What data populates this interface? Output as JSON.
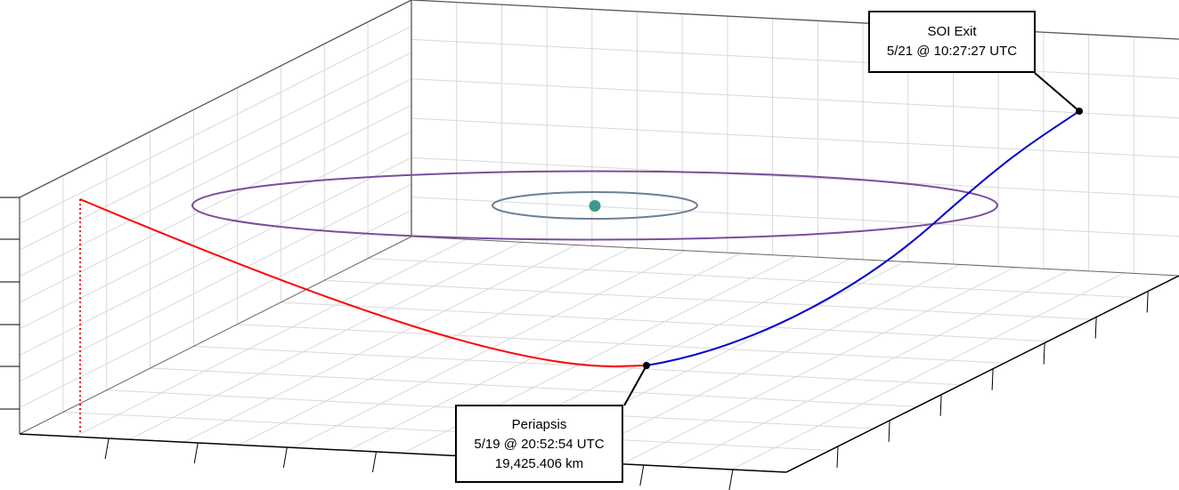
{
  "colors": {
    "grid": "#d9d9d9",
    "box_edge": "#000000",
    "approach_trajectory": "#ff0000",
    "departure_trajectory": "#0000cc",
    "outer_orbit": "#7b4d9a",
    "inner_orbit": "#6d7e96",
    "central_body": "#3a9a8a"
  },
  "markers": {
    "central_body": "central-body",
    "periapsis": "periapsis-point",
    "soi_exit": "soi-exit-point"
  },
  "annotations": {
    "soi_exit": {
      "title": "SOI Exit",
      "time": "5/21 @ 10:27:27 UTC"
    },
    "periapsis": {
      "title": "Periapsis",
      "time": "5/19 @ 20:52:54 UTC",
      "altitude": "19,425.406 km"
    }
  }
}
